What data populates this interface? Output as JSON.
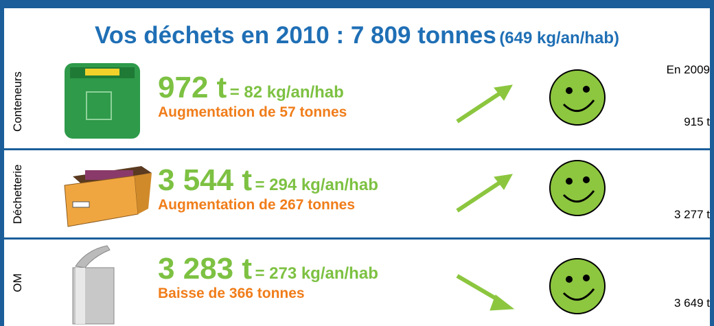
{
  "title": {
    "main": "Vos déchets en 2010 : 7 809 tonnes",
    "sub": "(649 kg/an/hab)"
  },
  "previous_header": "En 2009",
  "rows": [
    {
      "label": "Conteneurs",
      "amount": "972 t",
      "per_hab": "= 82 kg/an/hab",
      "change": "Augmentation de 57 tonnes",
      "previous": "915 t"
    },
    {
      "label": "Déchetterie",
      "amount": "3 544 t",
      "per_hab": "= 294 kg/an/hab",
      "change": "Augmentation de 267 tonnes",
      "previous": "3 277 t"
    },
    {
      "label": "OM",
      "amount": "3 283 t",
      "per_hab": "= 273 kg/an/hab",
      "change": "Baisse de 366 tonnes",
      "previous": "3 649 t"
    }
  ]
}
